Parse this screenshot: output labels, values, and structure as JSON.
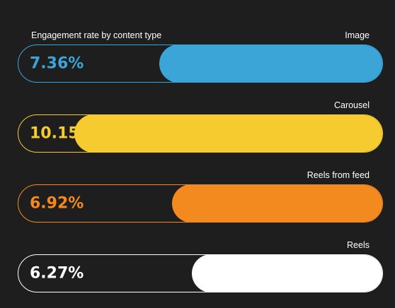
{
  "chart_data": {
    "type": "bar",
    "title": "Engagement rate by content type",
    "xlim": [
      0,
      12
    ],
    "categories": [
      "Image",
      "Carousel",
      "Reels from feed",
      "Reels"
    ],
    "values": [
      7.36,
      10.15,
      6.92,
      6.27
    ],
    "value_labels": [
      "7.36%",
      "10.15%",
      "6.92%",
      "6.27%"
    ],
    "colors": [
      "#3aa5d6",
      "#f5cb2f",
      "#f28a1f",
      "#ffffff"
    ],
    "grid": false,
    "legend": "none"
  }
}
